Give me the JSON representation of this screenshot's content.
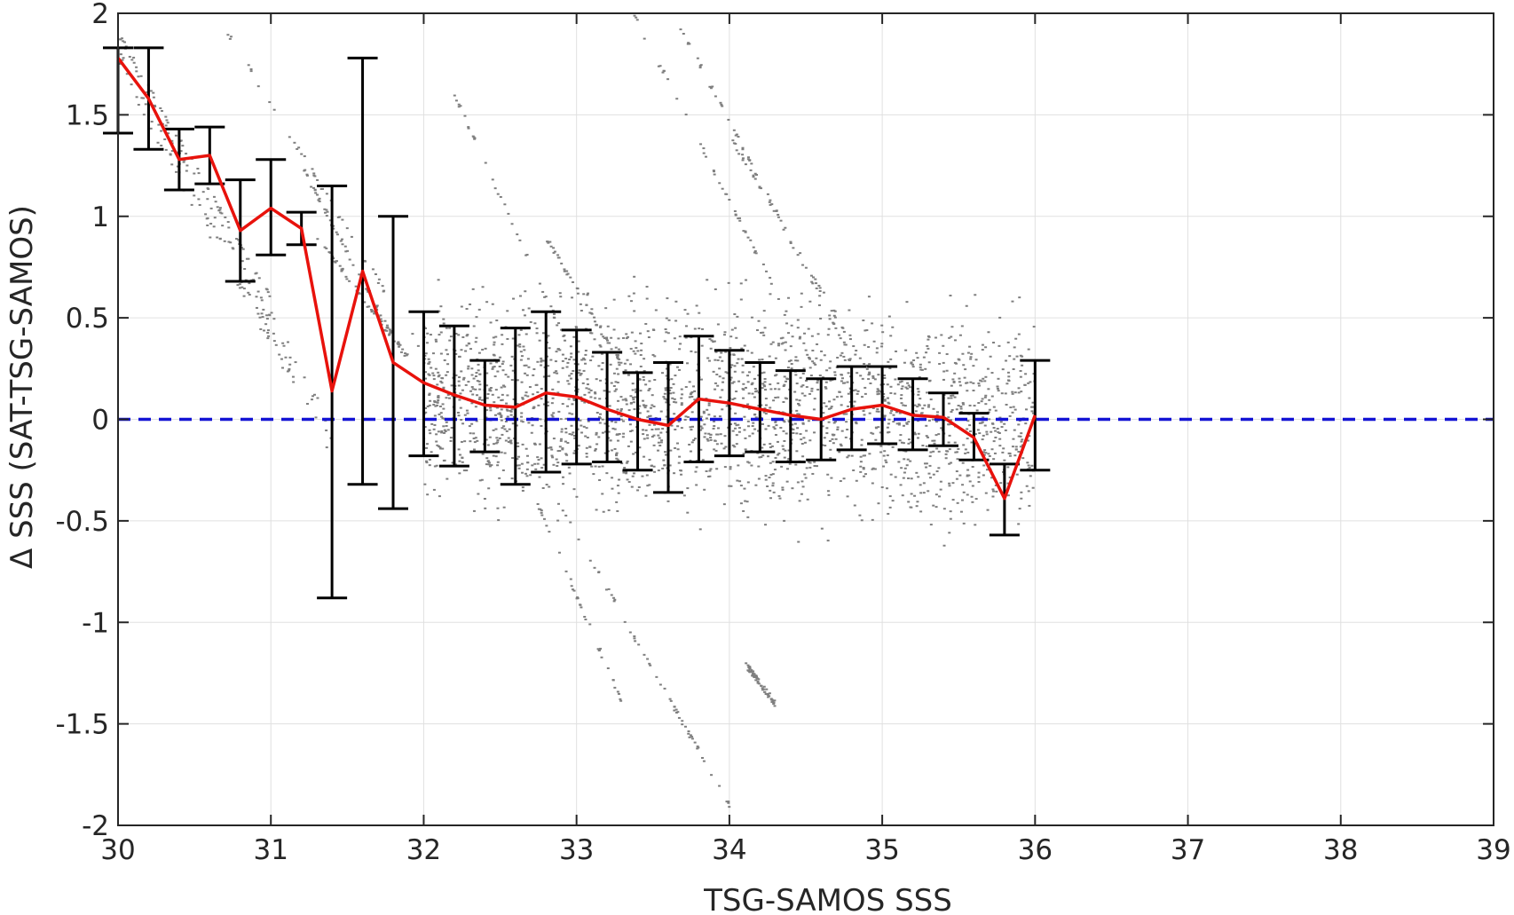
{
  "chart_data": {
    "type": "scatter",
    "xlabel": "TSG-SAMOS SSS",
    "ylabel": "Δ SSS (SAT-TSG-SAMOS)",
    "xlim": [
      30,
      39
    ],
    "ylim": [
      -2,
      2
    ],
    "xticks": [
      30,
      31,
      32,
      33,
      34,
      35,
      36,
      37,
      38,
      39
    ],
    "yticks": [
      -2,
      -1.5,
      -1,
      -0.5,
      0,
      0.5,
      1,
      1.5,
      2
    ],
    "grid": true,
    "reference_line": {
      "y": 0,
      "style": "dashed",
      "color": "#1414d4"
    },
    "colors": {
      "scatter": "#7f7f7f",
      "mean_line": "#e8120c",
      "error_bars": "#000000",
      "grid": "#e0e0e0",
      "axes": "#262626"
    },
    "series": [
      {
        "type": "errorbar-line",
        "x": [
          30.0,
          30.2,
          30.4,
          30.6,
          30.8,
          31.0,
          31.2,
          31.4,
          31.6,
          31.8,
          32.0,
          32.2,
          32.4,
          32.6,
          32.8,
          33.0,
          33.2,
          33.4,
          33.6,
          33.8,
          34.0,
          34.2,
          34.4,
          34.6,
          34.8,
          35.0,
          35.2,
          35.4,
          35.6,
          35.8,
          36.0
        ],
        "y": [
          1.78,
          1.58,
          1.28,
          1.3,
          0.93,
          1.04,
          0.94,
          0.14,
          0.73,
          0.28,
          0.18,
          0.12,
          0.07,
          0.06,
          0.13,
          0.11,
          0.05,
          0.0,
          -0.03,
          0.1,
          0.08,
          0.05,
          0.02,
          0.0,
          0.05,
          0.07,
          0.02,
          0.01,
          -0.09,
          -0.39,
          0.02
        ],
        "lower": [
          1.41,
          1.33,
          1.13,
          1.16,
          0.68,
          0.81,
          0.86,
          -0.88,
          -0.32,
          -0.44,
          -0.18,
          -0.23,
          -0.16,
          -0.32,
          -0.26,
          -0.22,
          -0.21,
          -0.25,
          -0.36,
          -0.21,
          -0.18,
          -0.16,
          -0.21,
          -0.2,
          -0.15,
          -0.12,
          -0.15,
          -0.13,
          -0.2,
          -0.57,
          -0.25
        ],
        "upper": [
          1.83,
          1.83,
          1.43,
          1.44,
          1.18,
          1.28,
          1.02,
          1.15,
          1.78,
          1.0,
          0.53,
          0.46,
          0.29,
          0.45,
          0.53,
          0.44,
          0.33,
          0.23,
          0.28,
          0.41,
          0.34,
          0.28,
          0.24,
          0.2,
          0.26,
          0.26,
          0.2,
          0.13,
          0.03,
          -0.22,
          0.29
        ]
      }
    ],
    "scatter_streaks": [
      {
        "x": [
          30.0,
          31.4
        ],
        "y": [
          1.8,
          -0.1
        ],
        "dense": true
      },
      {
        "x": [
          30.0,
          31.0
        ],
        "y": [
          1.9,
          0.6
        ],
        "dense": false
      },
      {
        "x": [
          30.6,
          32.5
        ],
        "y": [
          2.05,
          -0.3
        ],
        "dense": false
      },
      {
        "x": [
          31.3,
          31.9
        ],
        "y": [
          0.9,
          0.3
        ],
        "dense": false
      },
      {
        "x": [
          32.2,
          33.4
        ],
        "y": [
          1.6,
          -0.4
        ],
        "dense": false
      },
      {
        "x": [
          32.8,
          33.5
        ],
        "y": [
          0.9,
          0.0
        ],
        "dense": false
      },
      {
        "x": [
          33.3,
          34.6
        ],
        "y": [
          2.1,
          0.2
        ],
        "dense": false
      },
      {
        "x": [
          33.6,
          34.8
        ],
        "y": [
          2.05,
          0.3
        ],
        "dense": false
      },
      {
        "x": [
          34.0,
          35.1
        ],
        "y": [
          1.4,
          0.0
        ],
        "dense": false
      },
      {
        "x": [
          32.4,
          33.3
        ],
        "y": [
          0.2,
          -1.4
        ],
        "dense": false
      },
      {
        "x": [
          32.8,
          34.0
        ],
        "y": [
          -0.3,
          -1.9
        ],
        "dense": false
      },
      {
        "x": [
          34.1,
          34.3
        ],
        "y": [
          -1.2,
          -1.4
        ],
        "dense": false
      },
      {
        "x": [
          31.2,
          31.8
        ],
        "y": [
          1.25,
          0.4
        ],
        "dense": false
      }
    ],
    "scatter_cloud": {
      "x": [
        32.0,
        36.0
      ],
      "center_y": [
        0.1,
        0.0
      ],
      "spread": 0.35
    }
  }
}
